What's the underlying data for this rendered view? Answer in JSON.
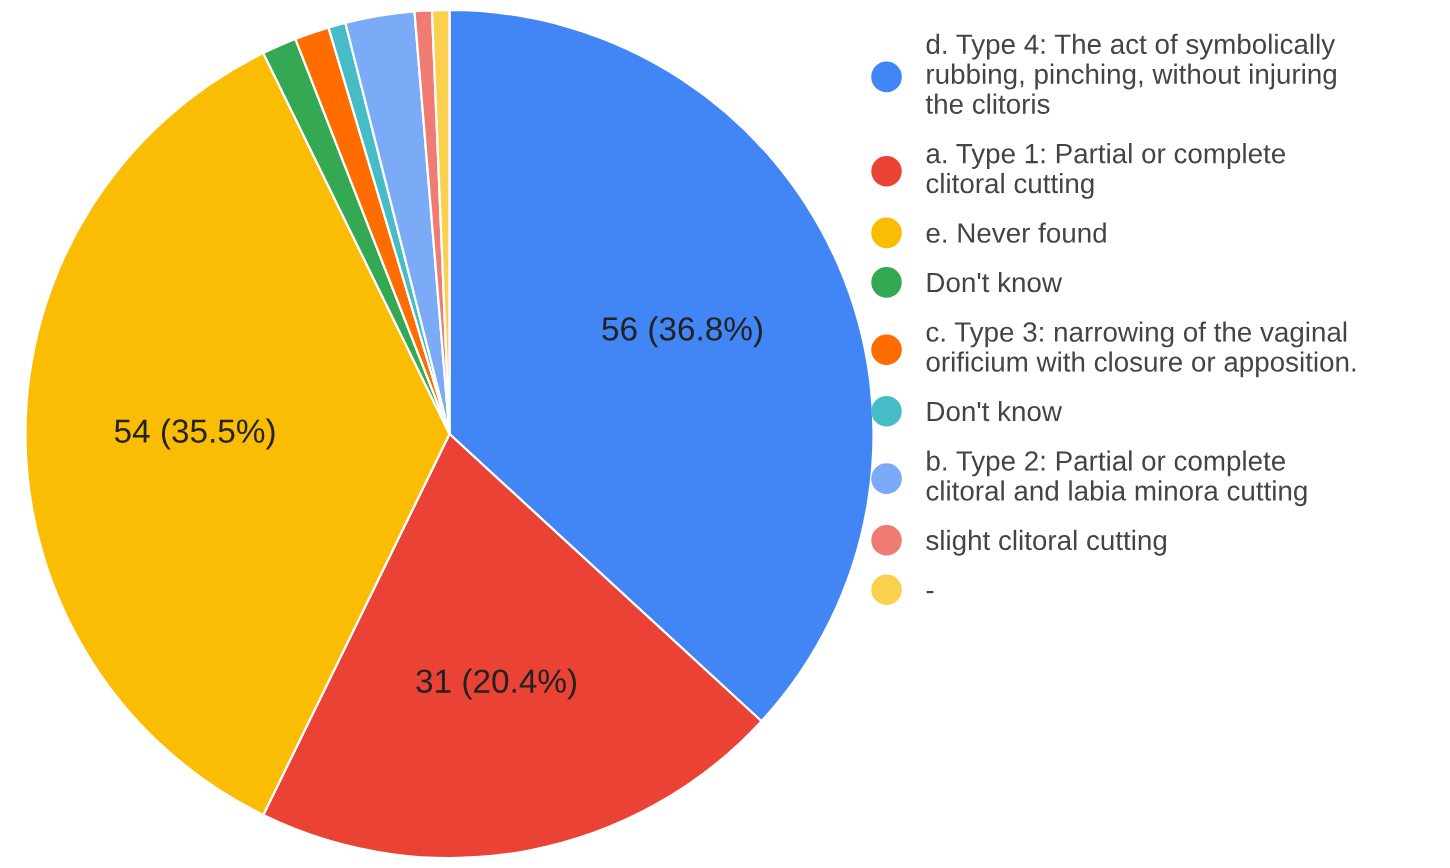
{
  "chart_data": {
    "type": "pie",
    "categories": [
      "d. Type 4: The act of symbolically rubbing, pinching, without injuring the clitoris",
      "a. Type 1: Partial or complete clitoral cutting",
      "e. Never found",
      "Don't know",
      "c. Type 3: narrowing of the vaginal orificium with closure or apposition.",
      "Don't know",
      "b. Type 2: Partial or complete clitoral and labia minora cutting",
      "slight clitoral cutting",
      "-"
    ],
    "values": [
      56,
      31,
      54,
      2,
      2,
      1,
      4,
      1,
      1
    ],
    "value_labels": [
      "56 (36.8%)",
      "31 (20.4%)",
      "54 (35.5%)",
      null,
      null,
      null,
      null,
      null,
      null
    ],
    "colors": [
      "#4285f4",
      "#ea4335",
      "#fbbc04",
      "#34a853",
      "#ff6d01",
      "#46bdc6",
      "#7baaf7",
      "#f07b72",
      "#fcd04f"
    ],
    "legend": "right"
  }
}
